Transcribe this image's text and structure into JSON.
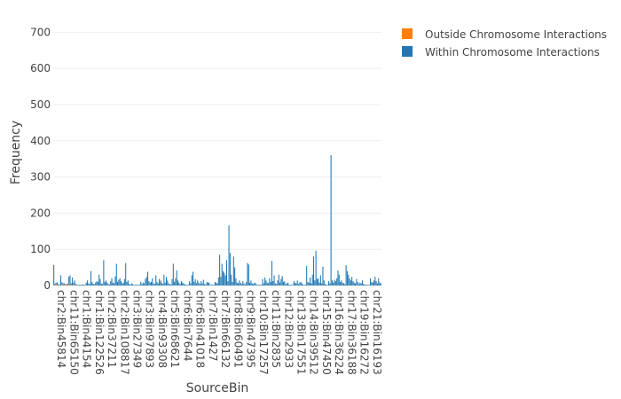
{
  "chart_data": {
    "type": "bar",
    "barmode": "stack",
    "xlabel": "SourceBin",
    "ylabel": "Frequency",
    "ylim": [
      0,
      740
    ],
    "yticks": [
      0,
      100,
      200,
      300,
      400,
      500,
      600,
      700
    ],
    "grid": true,
    "legend_position": "top-right",
    "x_tick_labels": [
      "chr2:Bin45814",
      "chr11:Bin65150",
      "chr1:Bin44154",
      "chr1:Bin122526",
      "chr2:Bin37211",
      "chr2:Bin108817",
      "chr3:Bin27349",
      "chr3:Bin97893",
      "chr4:Bin93308",
      "chr5:Bin68621",
      "chr6:Bin7644",
      "chr6:Bin41018",
      "chr7:Bin1427",
      "chr7:Bin66132",
      "chr8:Bin60491",
      "chr9:Bin47395",
      "chr10:Bin17257",
      "chr11:Bin2835",
      "chr12:Bin2933",
      "chr13:Bin17551",
      "chr14:Bin39512",
      "chr15:Bin47450",
      "chr16:Bin36224",
      "chr17:Bin36188",
      "chr19:Bin16272",
      "chr21:Bin16193"
    ],
    "series": [
      {
        "name": "Outside Chromosome Interactions",
        "color": "#ff7f0e",
        "values": [
          2,
          0,
          3,
          1,
          0,
          2,
          0,
          4,
          0,
          2,
          0,
          3,
          0,
          5,
          0,
          2,
          0,
          2,
          0,
          1
        ]
      },
      {
        "name": "Within Chromosome Interactions",
        "color": "#1f77b4",
        "values": [
          55,
          6,
          4,
          8,
          3,
          2,
          28,
          5,
          6,
          4,
          3,
          2,
          5,
          20,
          28,
          4,
          22,
          6,
          14,
          3,
          2,
          2,
          2,
          2,
          2,
          3,
          2,
          2,
          8,
          14,
          6,
          4,
          40,
          10,
          5,
          3,
          8,
          12,
          10,
          30,
          18,
          6,
          4,
          70,
          10,
          14,
          8,
          4,
          3,
          12,
          20,
          8,
          6,
          25,
          60,
          10,
          16,
          20,
          12,
          6,
          8,
          18,
          62,
          10,
          14,
          4,
          3,
          6,
          4,
          2,
          2,
          2,
          2,
          2,
          2,
          10,
          4,
          8,
          6,
          18,
          24,
          38,
          12,
          8,
          10,
          20,
          6,
          4,
          28,
          10,
          6,
          18,
          14,
          8,
          4,
          30,
          8,
          24,
          14,
          6,
          4,
          3,
          18,
          60,
          10,
          20,
          42,
          14,
          8,
          4,
          12,
          8,
          6,
          3,
          2,
          2,
          2,
          12,
          6,
          28,
          38,
          10,
          18,
          6,
          14,
          8,
          4,
          12,
          6,
          16,
          4,
          3,
          10,
          8,
          8,
          2,
          2,
          2,
          2,
          10,
          8,
          6,
          22,
          85,
          24,
          60,
          40,
          35,
          28,
          70,
          12,
          166,
          90,
          30,
          10,
          80,
          50,
          20,
          8,
          6,
          14,
          8,
          4,
          12,
          6,
          3,
          10,
          62,
          58,
          8,
          14,
          6,
          4,
          8,
          6,
          2,
          2,
          2,
          2,
          2,
          18,
          6,
          22,
          14,
          8,
          6,
          20,
          10,
          68,
          12,
          28,
          6,
          4,
          14,
          30,
          8,
          18,
          26,
          10,
          12,
          4,
          6,
          8,
          2,
          2,
          2,
          2,
          12,
          8,
          6,
          14,
          4,
          8,
          10,
          6,
          2,
          2,
          2,
          54,
          10,
          8,
          22,
          6,
          30,
          80,
          14,
          96,
          18,
          20,
          8,
          28,
          6,
          52,
          14,
          4,
          2,
          2,
          12,
          6,
          360,
          14,
          8,
          16,
          12,
          20,
          42,
          30,
          10,
          14,
          8,
          6,
          4,
          56,
          40,
          30,
          20,
          14,
          24,
          12,
          8,
          6,
          18,
          10,
          4,
          8,
          6,
          14,
          4,
          3,
          2,
          2,
          2,
          2,
          20,
          10,
          8,
          14,
          24,
          12,
          6,
          20,
          8,
          6
        ]
      }
    ]
  }
}
